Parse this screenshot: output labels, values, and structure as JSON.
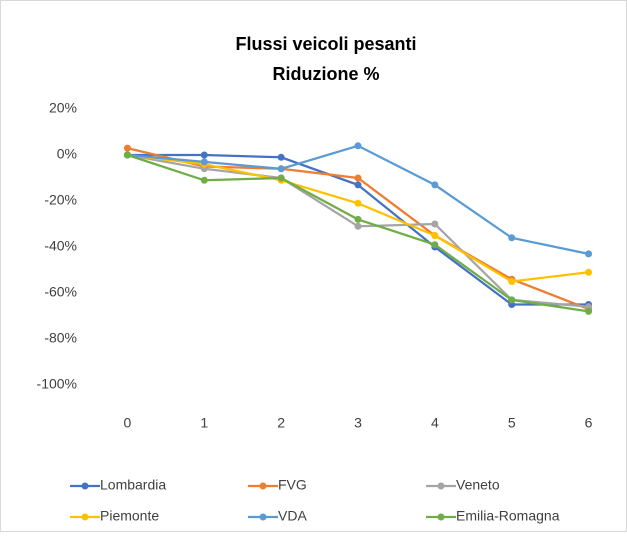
{
  "chart_data": {
    "type": "line",
    "title": [
      "Flussi veicoli pesanti",
      "Riduzione %"
    ],
    "categories": [
      "0",
      "1",
      "2",
      "3",
      "4",
      "5",
      "6"
    ],
    "ylim": [
      -100,
      20
    ],
    "yticks": [
      {
        "value": -100,
        "label": "-100%"
      },
      {
        "value": -80,
        "label": "-80%"
      },
      {
        "value": -60,
        "label": "-60%"
      },
      {
        "value": -40,
        "label": "-40%"
      },
      {
        "value": -20,
        "label": "-20%"
      },
      {
        "value": 0,
        "label": "0%"
      },
      {
        "value": 20,
        "label": "20%"
      }
    ],
    "grid": false,
    "legend": "bottom",
    "series": [
      {
        "name": "Lombardia",
        "color": "#4472c4",
        "values": [
          0,
          0,
          -1,
          -13,
          -40,
          -65,
          -65
        ]
      },
      {
        "name": "FVG",
        "color": "#ed7d31",
        "values": [
          3,
          -5,
          -6,
          -10,
          -35,
          -54,
          -67
        ]
      },
      {
        "name": "Veneto",
        "color": "#a5a5a5",
        "values": [
          0,
          -6,
          -10,
          -31,
          -30,
          -63,
          -66
        ]
      },
      {
        "name": "Piemonte",
        "color": "#ffc000",
        "values": [
          0,
          -4,
          -11,
          -21,
          -35,
          -55,
          -51
        ]
      },
      {
        "name": "VDA",
        "color": "#5b9bd5",
        "values": [
          0,
          -3,
          -6,
          4,
          -13,
          -36,
          -43
        ]
      },
      {
        "name": "Emilia-Romagna",
        "color": "#70ad47",
        "values": [
          0,
          -11,
          -10,
          -28,
          -39,
          -63,
          -68
        ]
      }
    ]
  }
}
